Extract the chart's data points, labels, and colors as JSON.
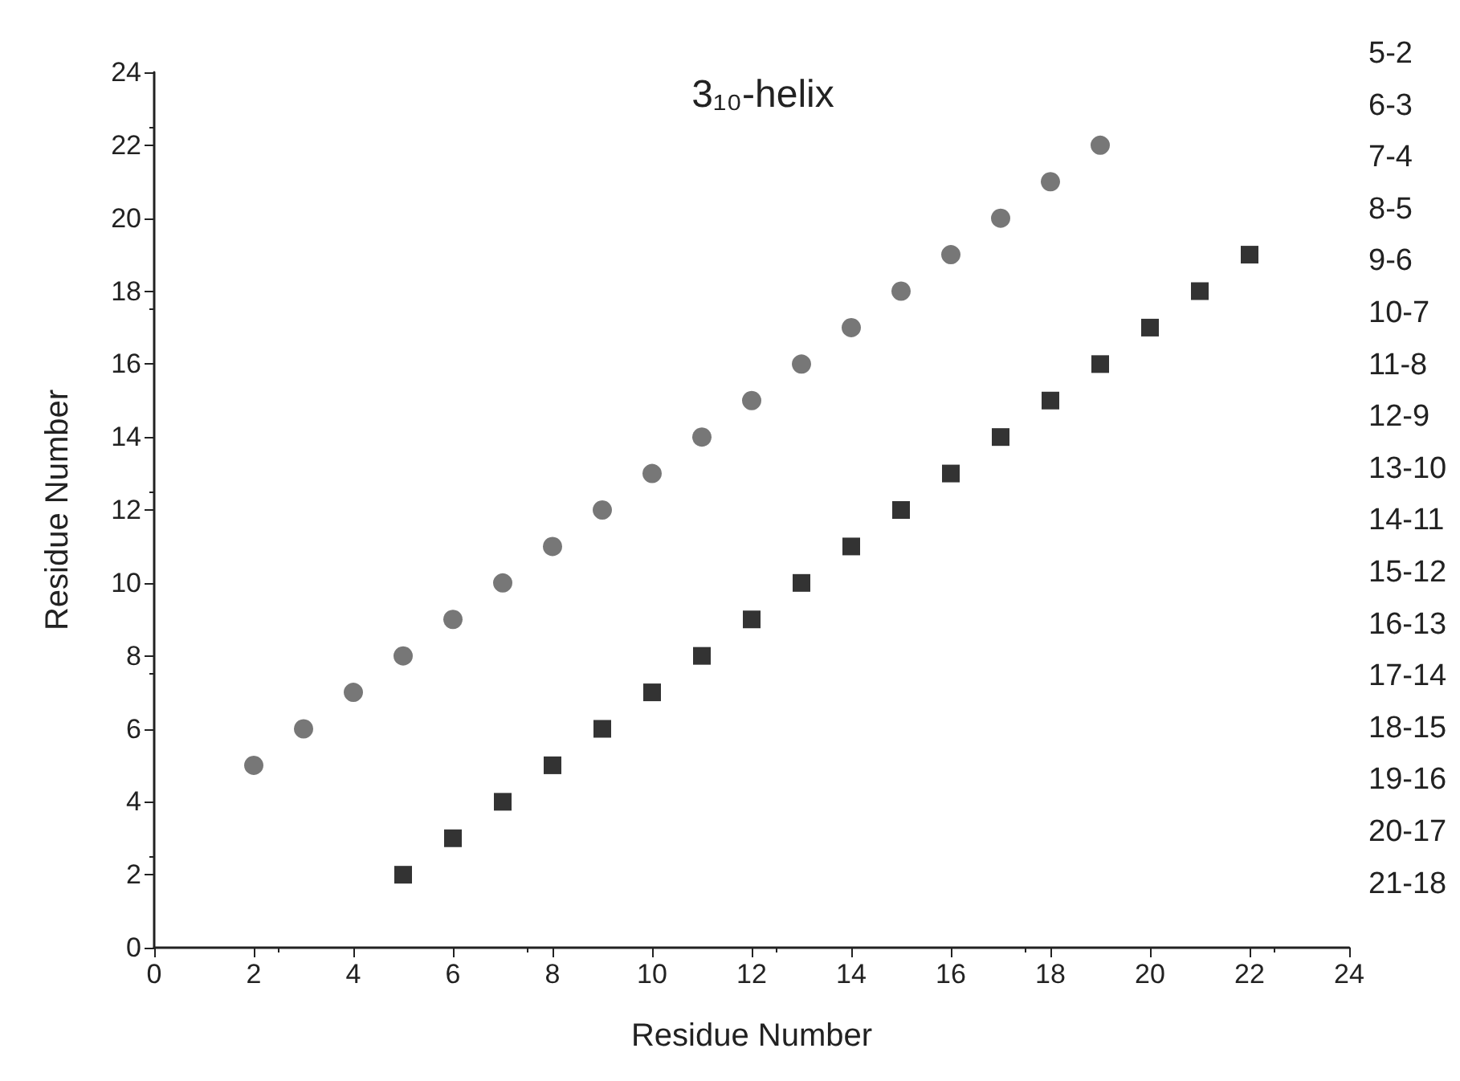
{
  "chart_data": {
    "type": "scatter",
    "title": "3₁₀-helix",
    "xlabel": "Residue Number",
    "ylabel": "Residue Number",
    "xlim": [
      0,
      24
    ],
    "xticks": [
      0,
      2,
      4,
      6,
      8,
      10,
      12,
      14,
      16,
      18,
      20,
      22,
      24
    ],
    "ylim": [
      0,
      24
    ],
    "yticks": [
      0,
      2,
      4,
      6,
      8,
      10,
      12,
      14,
      16,
      18,
      20,
      22,
      24
    ],
    "grid": false,
    "x": [
      2,
      3,
      4,
      5,
      6,
      7,
      8,
      9,
      10,
      11,
      12,
      13,
      14,
      15,
      16,
      17,
      18,
      19
    ],
    "series": [
      {
        "color": "#555555",
        "marker": "circle",
        "values": [
          5,
          6,
          7,
          8,
          9,
          10,
          11,
          12,
          13,
          14,
          15,
          16,
          17,
          18,
          19,
          20,
          21,
          22
        ]
      },
      {
        "color": "#000000",
        "marker": "square",
        "x": [
          5,
          6,
          7,
          8,
          9,
          10,
          11,
          12,
          13,
          14,
          15,
          16,
          17,
          18,
          19,
          20,
          21,
          22
        ],
        "values": [
          2,
          3,
          4,
          5,
          6,
          7,
          8,
          9,
          10,
          11,
          12,
          13,
          14,
          15,
          16,
          17,
          18,
          19
        ]
      }
    ],
    "annotations": [
      "5-2",
      "6-3",
      "7-4",
      "8-5",
      "9-6",
      "10-7",
      "11-8",
      "12-9",
      "13-10",
      "14-11",
      "15-12",
      "16-13",
      "17-14",
      "18-15",
      "19-16",
      "20-17",
      "21-18"
    ]
  }
}
